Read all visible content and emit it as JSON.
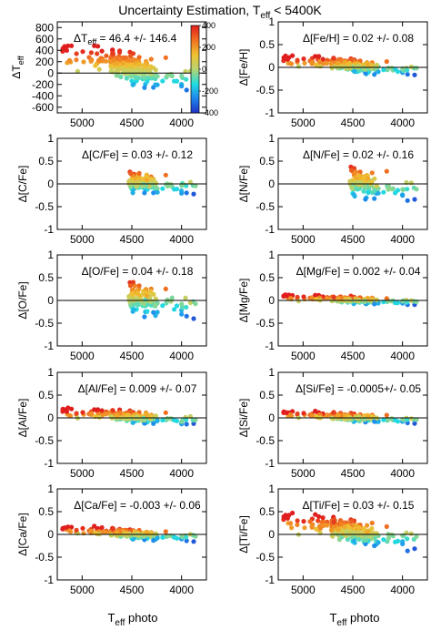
{
  "figure": {
    "title_main": "Uncertainty Estimation, T",
    "title_sub": "eff",
    "title_tail": " < 5400K",
    "x_axis_label_main": "T",
    "x_axis_label_sub": "eff",
    "x_axis_label_tail": " photo"
  },
  "colorbar": {
    "ticks": [
      "400",
      "200",
      "0",
      "-200",
      "-400"
    ],
    "range": [
      -400,
      400
    ],
    "colormap": [
      "#2033c8",
      "#1f86ec",
      "#22dde0",
      "#b8d470",
      "#f0c030",
      "#f07020",
      "#e01e1e"
    ]
  },
  "chart_data": [
    {
      "type": "scatter",
      "panel": "teff",
      "ylabel_main": "ΔT",
      "ylabel_sub": "eff",
      "annotation_main": "ΔT",
      "annotation_sub": "eff",
      "annotation_tail": " = 46.4 +/- 146.4",
      "xlim": [
        5250,
        3750
      ],
      "ylim": [
        -700,
        900
      ],
      "xticks": [
        5000,
        4500,
        4000
      ],
      "yticks": [
        800,
        600,
        400,
        200,
        0,
        -200,
        -400,
        -600
      ],
      "ytick_labels": [
        "800",
        "600",
        "400",
        "200",
        "0",
        "-200",
        "-400",
        "-600"
      ],
      "xrange": [
        3850,
        5200
      ],
      "mean": 46.4,
      "scatter": 146.4
    },
    {
      "type": "scatter",
      "panel": "feh",
      "ylabel": "Δ[Fe/H]",
      "annotation": "Δ[Fe/H] = 0.02 +/- 0.08",
      "xlim": [
        5250,
        3750
      ],
      "ylim": [
        -1,
        1
      ],
      "xticks": [
        5000,
        4500,
        4000
      ],
      "yticks": [
        1,
        0.5,
        0,
        -0.5,
        -1
      ],
      "ytick_labels": [
        "1",
        "0.5",
        "0",
        "-0.5",
        "-1"
      ],
      "xrange": [
        3850,
        5200
      ],
      "mean": 0.02,
      "scatter": 0.08
    },
    {
      "type": "scatter",
      "panel": "cfe",
      "ylabel": "Δ[C/Fe]",
      "annotation": "Δ[C/Fe] = 0.03 +/- 0.12",
      "xlim": [
        5250,
        3750
      ],
      "ylim": [
        -1,
        1
      ],
      "xticks": [
        5000,
        4500,
        4000
      ],
      "yticks": [
        1,
        0.5,
        0,
        -0.5,
        -1
      ],
      "ytick_labels": [
        "1",
        "0.5",
        "0",
        "-0.5",
        "-1"
      ],
      "xrange": [
        3850,
        4530
      ],
      "mean": 0.03,
      "scatter": 0.12
    },
    {
      "type": "scatter",
      "panel": "nfe",
      "ylabel": "Δ[N/Fe]",
      "annotation": "Δ[N/Fe] = 0.02 +/- 0.16",
      "xlim": [
        5250,
        3750
      ],
      "ylim": [
        -1,
        1
      ],
      "xticks": [
        5000,
        4500,
        4000
      ],
      "yticks": [
        1,
        0.5,
        0,
        -0.5,
        -1
      ],
      "ytick_labels": [
        "1",
        "0.5",
        "0",
        "-0.5",
        "-1"
      ],
      "xrange": [
        3850,
        4530
      ],
      "mean": 0.02,
      "scatter": 0.16
    },
    {
      "type": "scatter",
      "panel": "ofe",
      "ylabel": "Δ[O/Fe]",
      "annotation": "Δ[O/Fe] = 0.04 +/- 0.18",
      "xlim": [
        5250,
        3750
      ],
      "ylim": [
        -1,
        1
      ],
      "xticks": [
        5000,
        4500,
        4000
      ],
      "yticks": [
        1,
        0.5,
        0,
        -0.5,
        -1
      ],
      "ytick_labels": [
        "1",
        "0.5",
        "0",
        "-0.5",
        "-1"
      ],
      "xrange": [
        3850,
        4530
      ],
      "mean": 0.04,
      "scatter": 0.18
    },
    {
      "type": "scatter",
      "panel": "mgfe",
      "ylabel": "Δ[Mg/Fe]",
      "annotation": "Δ[Mg/Fe] = 0.002 +/- 0.04",
      "xlim": [
        5250,
        3750
      ],
      "ylim": [
        -1,
        1
      ],
      "xticks": [
        5000,
        4500,
        4000
      ],
      "yticks": [
        1,
        0.5,
        0,
        -0.5,
        -1
      ],
      "ytick_labels": [
        "1",
        "0.5",
        "0",
        "-0.5",
        "-1"
      ],
      "xrange": [
        3850,
        5200
      ],
      "mean": 0.002,
      "scatter": 0.04
    },
    {
      "type": "scatter",
      "panel": "alfe",
      "ylabel": "Δ[Al/Fe]",
      "annotation": "Δ[Al/Fe] = 0.009 +/- 0.07",
      "xlim": [
        5250,
        3750
      ],
      "ylim": [
        -1,
        1
      ],
      "xticks": [
        5000,
        4500,
        4000
      ],
      "yticks": [
        1,
        0.5,
        0,
        -0.5,
        -1
      ],
      "ytick_labels": [
        "1",
        "0.5",
        "0",
        "-0.5",
        "-1"
      ],
      "xrange": [
        3850,
        5200
      ],
      "mean": 0.009,
      "scatter": 0.07
    },
    {
      "type": "scatter",
      "panel": "sife",
      "ylabel": "Δ[Si/Fe]",
      "annotation": "Δ[Si/Fe] = -0.0005+/- 0.05",
      "xlim": [
        5250,
        3750
      ],
      "ylim": [
        -1,
        1
      ],
      "xticks": [
        5000,
        4500,
        4000
      ],
      "yticks": [
        1,
        0.5,
        0,
        -0.5,
        -1
      ],
      "ytick_labels": [
        "1",
        "0.5",
        "0",
        "-0.5",
        "-1"
      ],
      "xrange": [
        3850,
        5200
      ],
      "mean": -0.0005,
      "scatter": 0.05
    },
    {
      "type": "scatter",
      "panel": "cafe",
      "ylabel": "Δ[Ca/Fe]",
      "annotation": "Δ[Ca/Fe] = -0.003 +/- 0.06",
      "xlim": [
        5250,
        3750
      ],
      "ylim": [
        -1,
        1
      ],
      "xticks": [
        5000,
        4500,
        4000
      ],
      "yticks": [
        1,
        0.5,
        0,
        -0.5,
        -1
      ],
      "ytick_labels": [
        "1",
        "0.5",
        "0",
        "-0.5",
        "-1"
      ],
      "xrange": [
        3850,
        5200
      ],
      "mean": -0.003,
      "scatter": 0.06
    },
    {
      "type": "scatter",
      "panel": "tife",
      "ylabel": "Δ[Ti/Fe]",
      "annotation": "Δ[Ti/Fe] = 0.03 +/- 0.15",
      "xlim": [
        5250,
        3750
      ],
      "ylim": [
        -1,
        1
      ],
      "xticks": [
        5000,
        4500,
        4000
      ],
      "yticks": [
        1,
        0.5,
        0,
        -0.5,
        -1
      ],
      "ytick_labels": [
        "1",
        "0.5",
        "0",
        "-0.5",
        "-1"
      ],
      "xrange": [
        3850,
        5200
      ],
      "mean": 0.03,
      "scatter": 0.15
    }
  ]
}
